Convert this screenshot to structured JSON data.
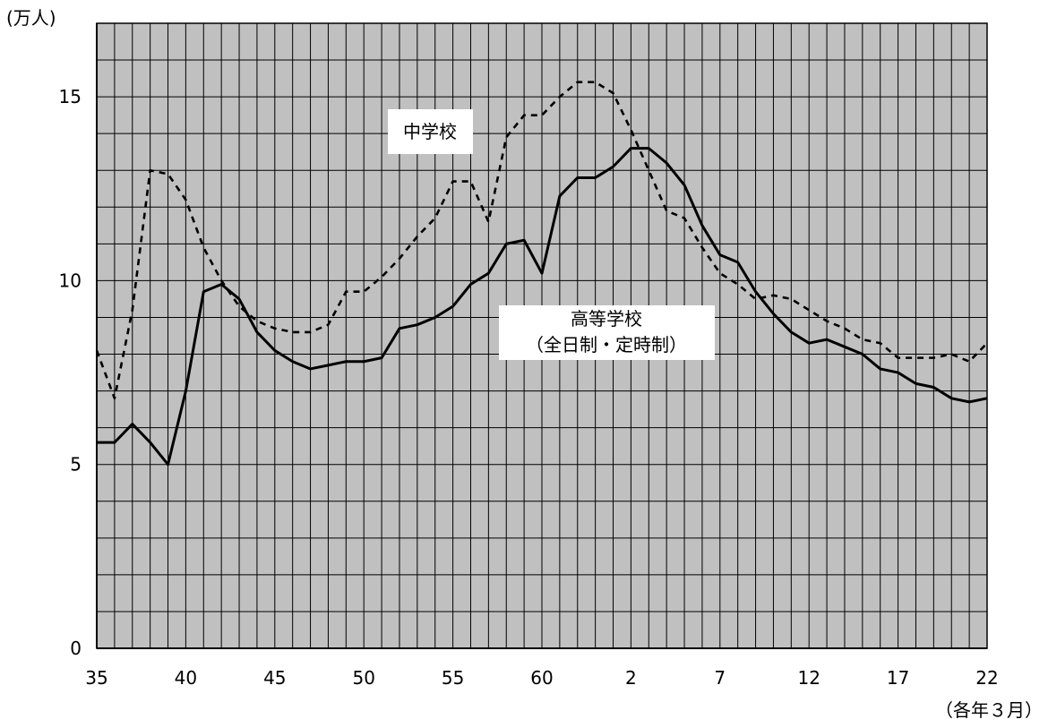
{
  "chart_data": {
    "type": "line",
    "ylabel": "(万人)",
    "xlabel": "（各年３月）",
    "ylim": [
      0,
      17
    ],
    "yticks": [
      0,
      5,
      10,
      15
    ],
    "ytick_labels": [
      "0",
      "5",
      "10",
      "15"
    ],
    "xtick_labels": [
      "35",
      "40",
      "45",
      "50",
      "55",
      "60",
      "2",
      "7",
      "12",
      "17",
      "22"
    ],
    "x_start_index": 0,
    "x_end_index": 50,
    "grid": true,
    "background": "#c0c0c0",
    "annotations": [
      {
        "lines": [
          "中学校"
        ]
      },
      {
        "lines": [
          "高等学校",
          "（全日制・定時制）"
        ]
      }
    ],
    "series": [
      {
        "style": "dashed",
        "values": [
          8.1,
          6.8,
          9.2,
          13.0,
          12.9,
          12.2,
          10.9,
          10.0,
          9.3,
          8.9,
          8.7,
          8.6,
          8.6,
          8.8,
          9.7,
          9.7,
          10.1,
          10.6,
          11.2,
          11.7,
          12.7,
          12.7,
          11.6,
          13.9,
          14.5,
          14.5,
          15.0,
          15.4,
          15.4,
          15.1,
          14.1,
          13.0,
          11.9,
          11.7,
          10.9,
          10.2,
          9.9,
          9.5,
          9.6,
          9.5,
          9.2,
          8.9,
          8.7,
          8.4,
          8.3,
          7.9,
          7.9,
          7.9,
          8.0,
          7.8,
          8.3
        ]
      },
      {
        "style": "solid",
        "values": [
          5.6,
          5.6,
          6.1,
          5.6,
          5.0,
          7.0,
          9.7,
          9.9,
          9.5,
          8.6,
          8.1,
          7.8,
          7.6,
          7.7,
          7.8,
          7.8,
          7.9,
          8.7,
          8.8,
          9.0,
          9.3,
          9.9,
          10.2,
          11.0,
          11.1,
          10.2,
          12.3,
          12.8,
          12.8,
          13.1,
          13.6,
          13.6,
          13.2,
          12.6,
          11.5,
          10.7,
          10.5,
          9.7,
          9.1,
          8.6,
          8.3,
          8.4,
          8.2,
          8.0,
          7.6,
          7.5,
          7.2,
          7.1,
          6.8,
          6.7,
          6.8
        ]
      }
    ]
  }
}
